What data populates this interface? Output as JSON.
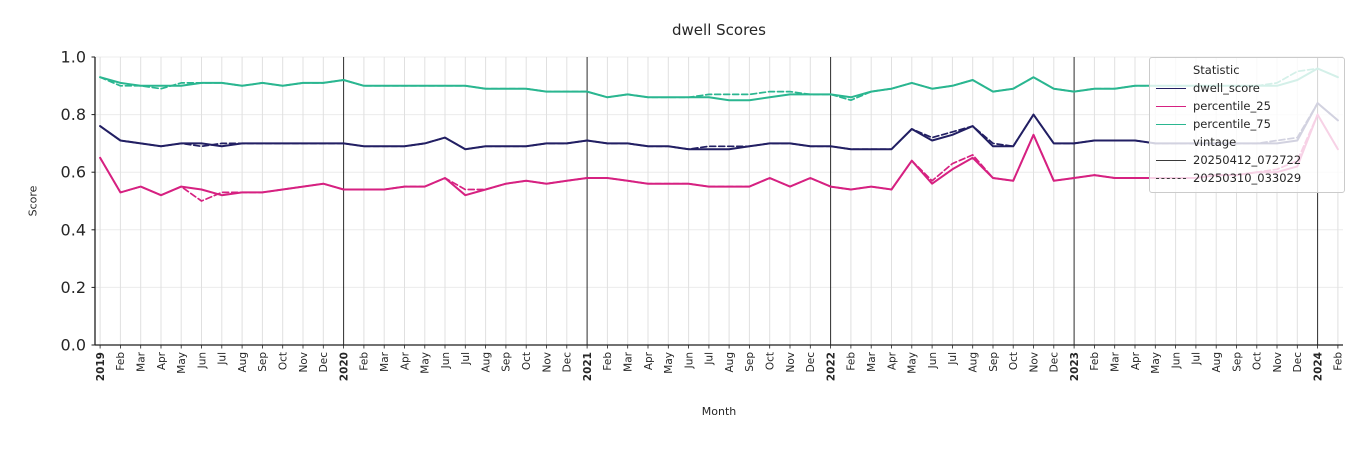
{
  "chart_data": {
    "type": "line",
    "title": "dwell Scores",
    "xlabel": "Month",
    "ylabel": "Score",
    "ylim": [
      0.0,
      1.0
    ],
    "yticks": [
      0.0,
      0.2,
      0.4,
      0.6,
      0.8,
      1.0
    ],
    "grid": true,
    "legend_position": "upper right",
    "categories": [
      "2019",
      "Feb",
      "Mar",
      "Apr",
      "May",
      "Jun",
      "Jul",
      "Aug",
      "Sep",
      "Oct",
      "Nov",
      "Dec",
      "2020",
      "Feb",
      "Mar",
      "Apr",
      "May",
      "Jun",
      "Jul",
      "Aug",
      "Sep",
      "Oct",
      "Nov",
      "Dec",
      "2021",
      "Feb",
      "Mar",
      "Apr",
      "May",
      "Jun",
      "Jul",
      "Aug",
      "Sep",
      "Oct",
      "Nov",
      "Dec",
      "2022",
      "Feb",
      "Mar",
      "Apr",
      "May",
      "Jun",
      "Jul",
      "Aug",
      "Sep",
      "Oct",
      "Nov",
      "Dec",
      "2023",
      "Feb",
      "Mar",
      "Apr",
      "May",
      "Jun",
      "Jul",
      "Aug",
      "Sep",
      "Oct",
      "Nov",
      "Dec",
      "2024",
      "Feb"
    ],
    "legend": {
      "statistic_title": "Statistic",
      "statistics": [
        {
          "label": "dwell_score",
          "color": "#221f63"
        },
        {
          "label": "percentile_25",
          "color": "#d62181"
        },
        {
          "label": "percentile_75",
          "color": "#2ab690"
        }
      ],
      "vintage_title": "vintage",
      "vintages": [
        {
          "label": "20250412_072722",
          "style": "solid"
        },
        {
          "label": "20250310_033029",
          "style": "dashed"
        }
      ]
    },
    "series": [
      {
        "name": "dwell_score",
        "vintage": "20250412_072722",
        "style": "solid",
        "color": "#221f63",
        "values": [
          0.76,
          0.71,
          0.7,
          0.69,
          0.7,
          0.7,
          0.69,
          0.7,
          0.7,
          0.7,
          0.7,
          0.7,
          0.7,
          0.69,
          0.69,
          0.69,
          0.7,
          0.72,
          0.68,
          0.69,
          0.69,
          0.69,
          0.7,
          0.7,
          0.71,
          0.7,
          0.7,
          0.69,
          0.69,
          0.68,
          0.68,
          0.68,
          0.69,
          0.7,
          0.7,
          0.69,
          0.69,
          0.68,
          0.68,
          0.68,
          0.75,
          0.71,
          0.73,
          0.76,
          0.69,
          0.69,
          0.8,
          0.7,
          0.7,
          0.71,
          0.71,
          0.71,
          0.7,
          0.7,
          0.7,
          0.7,
          0.7,
          0.7,
          0.7,
          0.71,
          0.84,
          0.78
        ]
      },
      {
        "name": "percentile_25",
        "vintage": "20250412_072722",
        "style": "solid",
        "color": "#d62181",
        "values": [
          0.65,
          0.53,
          0.55,
          0.52,
          0.55,
          0.54,
          0.52,
          0.53,
          0.53,
          0.54,
          0.55,
          0.56,
          0.54,
          0.54,
          0.54,
          0.55,
          0.55,
          0.58,
          0.52,
          0.54,
          0.56,
          0.57,
          0.56,
          0.57,
          0.58,
          0.58,
          0.57,
          0.56,
          0.56,
          0.56,
          0.55,
          0.55,
          0.55,
          0.58,
          0.55,
          0.58,
          0.55,
          0.54,
          0.55,
          0.54,
          0.64,
          0.56,
          0.61,
          0.65,
          0.58,
          0.57,
          0.73,
          0.57,
          0.58,
          0.59,
          0.58,
          0.58,
          0.58,
          0.58,
          0.58,
          0.59,
          0.59,
          0.6,
          0.6,
          0.62,
          0.8,
          0.68
        ]
      },
      {
        "name": "percentile_75",
        "vintage": "20250412_072722",
        "style": "solid",
        "color": "#2ab690",
        "values": [
          0.93,
          0.91,
          0.9,
          0.9,
          0.9,
          0.91,
          0.91,
          0.9,
          0.91,
          0.9,
          0.91,
          0.91,
          0.92,
          0.9,
          0.9,
          0.9,
          0.9,
          0.9,
          0.9,
          0.89,
          0.89,
          0.89,
          0.88,
          0.88,
          0.88,
          0.86,
          0.87,
          0.86,
          0.86,
          0.86,
          0.86,
          0.85,
          0.85,
          0.86,
          0.87,
          0.87,
          0.87,
          0.86,
          0.88,
          0.89,
          0.91,
          0.89,
          0.9,
          0.92,
          0.88,
          0.89,
          0.93,
          0.89,
          0.88,
          0.89,
          0.89,
          0.9,
          0.9,
          0.9,
          0.9,
          0.9,
          0.9,
          0.9,
          0.9,
          0.92,
          0.96,
          0.93
        ]
      },
      {
        "name": "dwell_score",
        "vintage": "20250310_033029",
        "style": "dashed",
        "color": "#221f63",
        "values": [
          0.76,
          0.71,
          0.7,
          0.69,
          0.7,
          0.69,
          0.7,
          0.7,
          0.7,
          0.7,
          0.7,
          0.7,
          0.7,
          0.69,
          0.69,
          0.69,
          0.7,
          0.72,
          0.68,
          0.69,
          0.69,
          0.69,
          0.7,
          0.7,
          0.71,
          0.7,
          0.7,
          0.69,
          0.69,
          0.68,
          0.69,
          0.69,
          0.69,
          0.7,
          0.7,
          0.69,
          0.69,
          0.68,
          0.68,
          0.68,
          0.75,
          0.72,
          0.74,
          0.76,
          0.7,
          0.69,
          0.8,
          0.7,
          0.7,
          0.71,
          0.71,
          0.71,
          0.7,
          0.7,
          0.7,
          0.7,
          0.7,
          0.7,
          0.71,
          0.72,
          0.84,
          0.78
        ]
      },
      {
        "name": "percentile_25",
        "vintage": "20250310_033029",
        "style": "dashed",
        "color": "#d62181",
        "values": [
          0.65,
          0.53,
          0.55,
          0.52,
          0.55,
          0.5,
          0.53,
          0.53,
          0.53,
          0.54,
          0.55,
          0.56,
          0.54,
          0.54,
          0.54,
          0.55,
          0.55,
          0.58,
          0.54,
          0.54,
          0.56,
          0.57,
          0.56,
          0.57,
          0.58,
          0.58,
          0.57,
          0.56,
          0.56,
          0.56,
          0.55,
          0.55,
          0.55,
          0.58,
          0.55,
          0.58,
          0.55,
          0.54,
          0.55,
          0.54,
          0.64,
          0.57,
          0.63,
          0.66,
          0.58,
          0.57,
          0.73,
          0.57,
          0.58,
          0.59,
          0.58,
          0.58,
          0.58,
          0.58,
          0.58,
          0.59,
          0.59,
          0.6,
          0.61,
          0.64,
          0.8,
          0.68
        ]
      },
      {
        "name": "percentile_75",
        "vintage": "20250310_033029",
        "style": "dashed",
        "color": "#2ab690",
        "values": [
          0.93,
          0.9,
          0.9,
          0.89,
          0.91,
          0.91,
          0.91,
          0.9,
          0.91,
          0.9,
          0.91,
          0.91,
          0.92,
          0.9,
          0.9,
          0.9,
          0.9,
          0.9,
          0.9,
          0.89,
          0.89,
          0.89,
          0.88,
          0.88,
          0.88,
          0.86,
          0.87,
          0.86,
          0.86,
          0.86,
          0.87,
          0.87,
          0.87,
          0.88,
          0.88,
          0.87,
          0.87,
          0.85,
          0.88,
          0.89,
          0.91,
          0.89,
          0.9,
          0.92,
          0.88,
          0.89,
          0.93,
          0.89,
          0.88,
          0.89,
          0.89,
          0.9,
          0.9,
          0.9,
          0.9,
          0.9,
          0.9,
          0.9,
          0.91,
          0.95,
          0.96,
          0.93
        ]
      }
    ],
    "style_hints": {
      "grid_color_minor": "#e0e0e0",
      "grid_color_horizontal": "#ececec",
      "year_line_color": "#2c2c2c",
      "spine_color": "#1f1f1f",
      "text_color": "#262626"
    }
  }
}
